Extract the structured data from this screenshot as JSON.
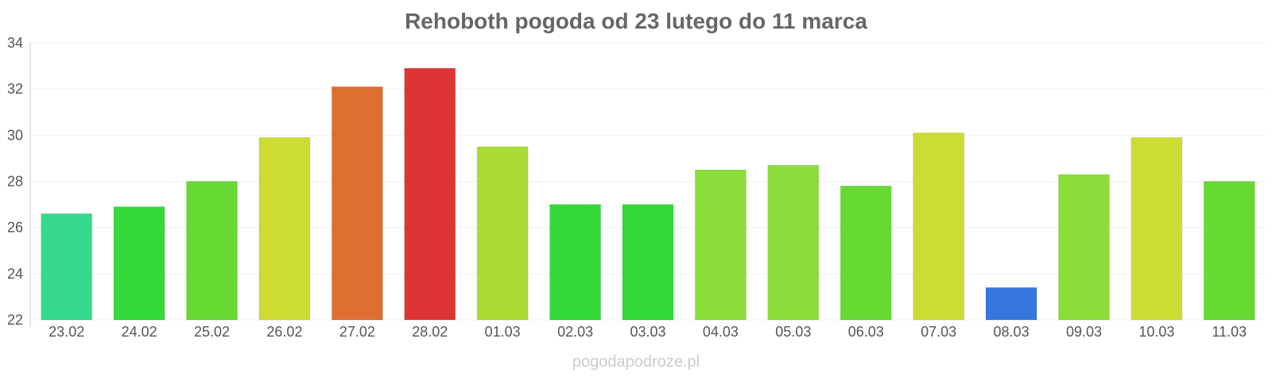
{
  "chart_data": {
    "type": "bar",
    "title": "Rehoboth pogoda od 23 lutego do 11 marca",
    "xlabel": "",
    "ylabel": "",
    "ylim": [
      22,
      34
    ],
    "yticks": [
      "22",
      "24",
      "26",
      "28",
      "30",
      "32",
      "34"
    ],
    "grid": true,
    "categories": [
      "23.02",
      "24.02",
      "25.02",
      "26.02",
      "27.02",
      "28.02",
      "01.03",
      "02.03",
      "03.03",
      "04.03",
      "05.03",
      "06.03",
      "07.03",
      "08.03",
      "09.03",
      "10.03",
      "11.03"
    ],
    "values": [
      26.6,
      26.9,
      28.0,
      29.9,
      32.1,
      32.9,
      29.5,
      27.0,
      27.0,
      28.5,
      28.7,
      27.8,
      30.1,
      23.4,
      28.3,
      29.9,
      28.0
    ],
    "colors": [
      "#35d98c",
      "#33da39",
      "#66da33",
      "#cddc33",
      "#dd6f33",
      "#dd3535",
      "#acdc33",
      "#33da39",
      "#33da39",
      "#8bdd3a",
      "#8bdd3a",
      "#66da33",
      "#cddc33",
      "#3577dd",
      "#8bdd3a",
      "#cddc33",
      "#66da33"
    ]
  },
  "watermark": "pogodapodroze.pl"
}
